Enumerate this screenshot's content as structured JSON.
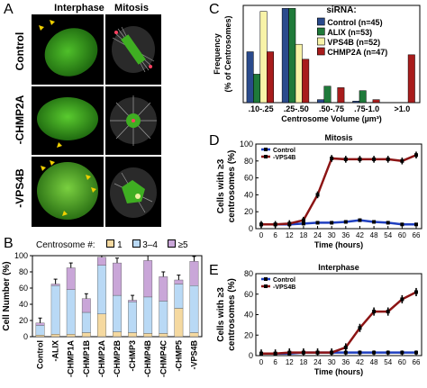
{
  "panels": {
    "A": {
      "letter": "A",
      "col_headers": [
        "Interphase",
        "Mitosis"
      ],
      "row_labels": [
        "Control",
        "-CHMP2A",
        "-VPS4B"
      ]
    },
    "B": {
      "letter": "B",
      "legend_title": "Centrosome #:",
      "legend_items": [
        "1",
        "3–4",
        "≥5"
      ],
      "colors": {
        "one": "#f5d9a0",
        "three_four": "#b9d9f5",
        "five_plus": "#c9a6d8"
      }
    },
    "C": {
      "letter": "C",
      "legend_title": "siRNA:",
      "colors": {
        "control": "#2a4a8c",
        "alix": "#1f7a3a",
        "vps4b": "#f8f3a8",
        "chmp2a": "#a81c1c"
      }
    },
    "D": {
      "letter": "D",
      "title": "Mitosis"
    },
    "E": {
      "letter": "E",
      "title": "Interphase"
    }
  },
  "chart_data": [
    {
      "id": "B",
      "type": "bar",
      "ylabel": "Cell Number (%)",
      "ylim": [
        0,
        100
      ],
      "yticks": [
        "0",
        "20",
        "40",
        "60",
        "80",
        "100"
      ],
      "categories": [
        "Control",
        "-ALIX",
        "-CHMP1A",
        "-CHMP1B",
        "-CHMP2A",
        "-CHMP2B",
        "-CHMP3",
        "-CHMP4B",
        "-CHMP4C",
        "-CHMP5",
        "-VPS4B"
      ],
      "series": [
        {
          "name": "1",
          "values": [
            2,
            3,
            3,
            5,
            28,
            6,
            5,
            4,
            4,
            35,
            5
          ]
        },
        {
          "name": "3–4",
          "values": [
            12,
            60,
            55,
            25,
            60,
            45,
            38,
            45,
            40,
            30,
            58
          ]
        },
        {
          "name": "≥5",
          "values": [
            3,
            2,
            27,
            17,
            10,
            40,
            2,
            45,
            30,
            5,
            30
          ]
        }
      ]
    },
    {
      "id": "C",
      "type": "bar",
      "ylabel": "Frequency (% of Centrosomes)",
      "xlabel": "Centrosome Volume (µm³)",
      "ylim": [
        0,
        65
      ],
      "categories": [
        ".10-.25",
        ".25-.50",
        ".50-.75",
        ".75-1.0",
        ">1.0"
      ],
      "series": [
        {
          "name": "Control (n=45)",
          "values": [
            34,
            63,
            2,
            1,
            0
          ]
        },
        {
          "name": "ALIX (n=53)",
          "values": [
            19,
            63,
            11,
            8,
            0
          ]
        },
        {
          "name": "VPS4B (n=52)",
          "values": [
            61,
            39,
            0,
            0,
            0
          ]
        },
        {
          "name": "CHMP2A (n=47)",
          "values": [
            34,
            29,
            10,
            2,
            32
          ]
        }
      ]
    },
    {
      "id": "D",
      "type": "line",
      "title": "Mitosis",
      "ylabel": "Cells with ≥3 centrosomes (%)",
      "xlabel": "Time (hours)",
      "ylim": [
        0,
        100
      ],
      "yticks": [
        "0",
        "20",
        "40",
        "60",
        "80",
        "100"
      ],
      "x": [
        0,
        6,
        12,
        18,
        24,
        30,
        36,
        42,
        48,
        54,
        60,
        66
      ],
      "series": [
        {
          "name": "Control",
          "values": [
            5,
            5,
            5,
            6,
            7,
            7,
            8,
            10,
            8,
            7,
            5,
            5
          ]
        },
        {
          "name": "-VPS4B",
          "values": [
            5,
            5,
            6,
            10,
            40,
            83,
            82,
            82,
            82,
            82,
            80,
            87
          ]
        }
      ]
    },
    {
      "id": "E",
      "type": "line",
      "title": "Interphase",
      "ylabel": "Cells with ≥3 centrosomes (%)",
      "xlabel": "Time (hours)",
      "ylim": [
        0,
        80
      ],
      "yticks": [
        "0",
        "20",
        "40",
        "60",
        "80"
      ],
      "x": [
        0,
        6,
        12,
        18,
        24,
        30,
        36,
        42,
        48,
        54,
        60,
        66
      ],
      "series": [
        {
          "name": "Control",
          "values": [
            2,
            2,
            2,
            3,
            3,
            3,
            3,
            3,
            3,
            3,
            3,
            3
          ]
        },
        {
          "name": "-VPS4B",
          "values": [
            2,
            2,
            3,
            3,
            3,
            3,
            8,
            27,
            43,
            43,
            55,
            62
          ]
        }
      ]
    }
  ]
}
